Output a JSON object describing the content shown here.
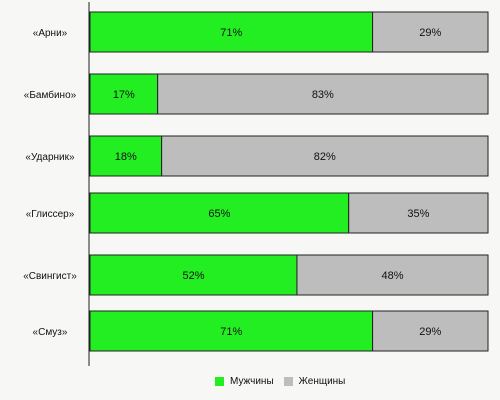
{
  "chart_data": {
    "type": "bar",
    "orientation": "horizontal",
    "stacked": true,
    "percent": true,
    "categories": [
      "«Арни»",
      "«Бамбино»",
      "«Ударник»",
      "«Глиссер»",
      "«Свингист»",
      "«Смуз»"
    ],
    "series": [
      {
        "name": "Мужчины",
        "values": [
          71,
          17,
          18,
          65,
          52,
          71
        ],
        "labels": [
          "71%",
          "17%",
          "18%",
          "65%",
          "52%",
          "71%"
        ],
        "color": "#22ee22"
      },
      {
        "name": "Женщины",
        "values": [
          29,
          83,
          82,
          35,
          48,
          29
        ],
        "labels": [
          "29%",
          "83%",
          "82%",
          "35%",
          "48%",
          "29%"
        ],
        "color": "#bdbdbd"
      }
    ],
    "xlim": [
      0,
      100
    ],
    "grid": false,
    "legend": "bottom-center"
  }
}
